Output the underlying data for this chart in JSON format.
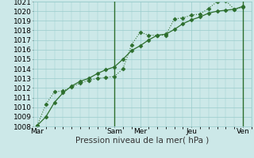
{
  "xlabel": "Pression niveau de la mer( hPa )",
  "bg_color": "#cce8e8",
  "grid_color": "#99cccc",
  "line_color": "#2d6e2d",
  "ylim": [
    1008,
    1021
  ],
  "yticks": [
    1008,
    1009,
    1010,
    1011,
    1012,
    1013,
    1014,
    1015,
    1016,
    1017,
    1018,
    1019,
    1020,
    1021
  ],
  "day_labels": [
    "Mar",
    "Sam",
    "Mer",
    "Jeu",
    "Ven"
  ],
  "day_positions": [
    0,
    36,
    48,
    72,
    96
  ],
  "xlim": [
    -2,
    100
  ],
  "series1_x": [
    0,
    4,
    8,
    12,
    16,
    20,
    24,
    28,
    32,
    36,
    40,
    44,
    48,
    52,
    56,
    60,
    64,
    68,
    72,
    76,
    80,
    84,
    88,
    92,
    96
  ],
  "series1_y": [
    1008.1,
    1010.3,
    1011.6,
    1011.7,
    1012.1,
    1012.5,
    1012.8,
    1013.0,
    1013.1,
    1013.2,
    1014.0,
    1016.5,
    1017.8,
    1017.5,
    1017.5,
    1017.5,
    1019.2,
    1019.3,
    1019.6,
    1019.7,
    1020.3,
    1021.0,
    1021.1,
    1020.2,
    1020.4
  ],
  "series2_x": [
    0,
    4,
    8,
    12,
    16,
    20,
    24,
    28,
    32,
    36,
    40,
    44,
    48,
    52,
    56,
    60,
    64,
    68,
    72,
    76,
    80,
    84,
    88,
    92,
    96
  ],
  "series2_y": [
    1008.1,
    1009.0,
    1010.5,
    1011.5,
    1012.2,
    1012.7,
    1013.0,
    1013.5,
    1013.9,
    1014.2,
    1015.0,
    1015.9,
    1016.4,
    1017.0,
    1017.5,
    1017.6,
    1018.1,
    1018.7,
    1019.1,
    1019.4,
    1019.8,
    1020.0,
    1020.1,
    1020.2,
    1020.5
  ],
  "vline_positions": [
    36,
    96
  ],
  "font_size": 6.5,
  "xlabel_fontsize": 7.5
}
